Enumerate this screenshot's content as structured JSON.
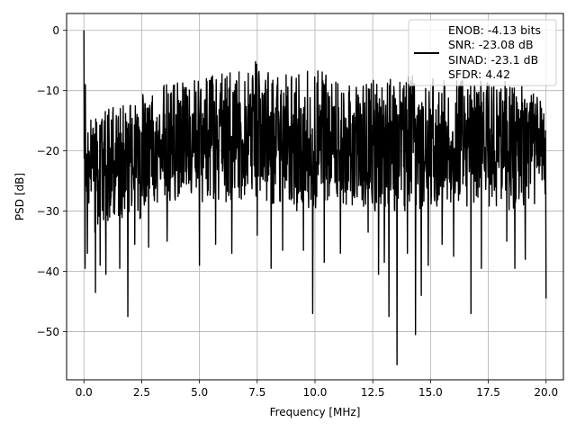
{
  "chart_data": {
    "type": "line",
    "xlabel": "Frequency [MHz]",
    "ylabel": "PSD [dB]",
    "xlim": [
      -0.75,
      20.75
    ],
    "ylim": [
      -58,
      2.8
    ],
    "xticks": [
      0.0,
      2.5,
      5.0,
      7.5,
      10.0,
      12.5,
      15.0,
      17.5,
      20.0
    ],
    "xtick_labels": [
      "0.0",
      "2.5",
      "5.0",
      "7.5",
      "10.0",
      "12.5",
      "15.0",
      "17.5",
      "20.0"
    ],
    "yticks": [
      0,
      -10,
      -20,
      -30,
      -40,
      -50
    ],
    "ytick_labels": [
      "0",
      "−10",
      "−20",
      "−30",
      "−40",
      "−50"
    ],
    "grid": true,
    "legend_position": "top-right",
    "legend_lines": [
      "ENOB: -4.13 bits",
      "SNR: -23.08 dB",
      "SINAD: -23.1 dB",
      "SFDR: 4.42"
    ],
    "series": [
      {
        "color": "#000000",
        "x": [
          0.0,
          0.05,
          0.1,
          0.2,
          0.4,
          0.6,
          0.8,
          1.0,
          1.2,
          1.4,
          1.6,
          1.8,
          1.9,
          2.0,
          2.2,
          2.4,
          2.6,
          2.8,
          3.0,
          3.2,
          3.4,
          3.6,
          3.8,
          4.0,
          4.2,
          4.4,
          4.6,
          4.8,
          5.0,
          5.2,
          5.4,
          5.6,
          5.8,
          6.0,
          6.2,
          6.4,
          6.6,
          6.8,
          7.0,
          7.2,
          7.4,
          7.6,
          7.8,
          8.0,
          8.2,
          8.4,
          8.6,
          8.8,
          9.0,
          9.2,
          9.4,
          9.6,
          9.8,
          10.0,
          10.2,
          10.4,
          10.6,
          10.8,
          11.0,
          11.2,
          11.4,
          11.6,
          11.8,
          12.0,
          12.2,
          12.4,
          12.6,
          12.8,
          13.0,
          13.2,
          13.4,
          13.6,
          13.8,
          14.0,
          14.2,
          14.4,
          14.6,
          14.8,
          15.0,
          15.2,
          15.4,
          15.6,
          15.8,
          16.0,
          16.2,
          16.4,
          16.6,
          16.8,
          17.0,
          17.2,
          17.4,
          17.6,
          17.8,
          18.0,
          18.2,
          18.4,
          18.6,
          18.8,
          19.0,
          19.2,
          19.4,
          19.6,
          19.8,
          20.0
        ],
        "y_upper": [
          0.0,
          -7.0,
          -11.5,
          -14.0,
          -14.5,
          -13.5,
          -13.0,
          -13.0,
          -12.5,
          -13.0,
          -12.0,
          -12.5,
          -12.0,
          -12.0,
          -12.0,
          -10.5,
          -10.5,
          -10.5,
          -10.0,
          -9.5,
          -9.0,
          -9.0,
          -8.5,
          -8.5,
          -9.0,
          -8.0,
          -7.5,
          -8.0,
          -8.0,
          -7.5,
          -8.0,
          -7.0,
          -7.5,
          -6.5,
          -6.5,
          -6.0,
          -7.0,
          -6.5,
          -6.0,
          -6.5,
          -5.0,
          -6.5,
          -6.0,
          -7.0,
          -6.5,
          -5.5,
          -6.5,
          -7.0,
          -7.5,
          -7.5,
          -6.5,
          -5.5,
          -6.5,
          -7.0,
          -6.5,
          -6.0,
          -7.5,
          -8.0,
          -6.5,
          -8.0,
          -8.5,
          -7.5,
          -8.5,
          -8.0,
          -8.5,
          -8.0,
          -8.0,
          -8.0,
          -8.0,
          -6.5,
          -7.5,
          -8.0,
          -8.0,
          -6.5,
          -7.0,
          -7.5,
          -8.0,
          -7.5,
          -8.0,
          -8.0,
          -8.5,
          -8.0,
          -8.5,
          -8.5,
          -7.5,
          -8.0,
          -8.0,
          -8.0,
          -8.0,
          -8.0,
          -8.0,
          -9.0,
          -9.0,
          -8.5,
          -8.0,
          -8.5,
          -8.0,
          -9.0,
          -8.5,
          -9.5,
          -9.0,
          -9.5,
          -10.0,
          -11.0
        ],
        "y_lower": [
          -27.5,
          -22.0,
          -33.0,
          -30.0,
          -34.0,
          -33.0,
          -33.0,
          -32.0,
          -31.0,
          -33.0,
          -32.0,
          -31.0,
          -31.0,
          -30.0,
          -32.0,
          -32.0,
          -31.0,
          -30.0,
          -30.0,
          -29.0,
          -31.0,
          -30.5,
          -29.0,
          -28.0,
          -30.0,
          -29.0,
          -29.0,
          -28.0,
          -29.0,
          -29.0,
          -28.0,
          -29.5,
          -30.0,
          -28.0,
          -29.0,
          -29.0,
          -28.0,
          -30.0,
          -29.0,
          -28.5,
          -30.0,
          -29.0,
          -28.5,
          -29.0,
          -29.5,
          -30.0,
          -29.0,
          -28.5,
          -29.0,
          -30.0,
          -29.0,
          -29.0,
          -30.0,
          -30.0,
          -29.0,
          -29.5,
          -30.0,
          -29.0,
          -30.0,
          -29.5,
          -29.0,
          -29.0,
          -30.0,
          -29.0,
          -29.5,
          -30.0,
          -30.5,
          -29.0,
          -30.0,
          -30.0,
          -31.0,
          -29.0,
          -30.0,
          -30.5,
          -29.0,
          -31.0,
          -30.0,
          -29.0,
          -30.0,
          -29.0,
          -30.5,
          -29.0,
          -29.5,
          -30.0,
          -29.0,
          -29.0,
          -30.5,
          -29.5,
          -30.0,
          -29.0,
          -29.5,
          -30.0,
          -29.0,
          -30.0,
          -29.0,
          -30.0,
          -30.5,
          -29.0,
          -30.0,
          -29.0,
          -30.5,
          -29.0,
          -29.0,
          -29.0
        ],
        "dips": [
          [
            0.05,
            -39.5
          ],
          [
            0.15,
            -37.0
          ],
          [
            0.5,
            -43.5
          ],
          [
            0.7,
            -39.0
          ],
          [
            0.95,
            -40.5
          ],
          [
            1.55,
            -39.5
          ],
          [
            1.9,
            -47.5
          ],
          [
            2.2,
            -35.5
          ],
          [
            2.8,
            -36.0
          ],
          [
            3.6,
            -35.0
          ],
          [
            5.0,
            -39.0
          ],
          [
            5.7,
            -35.5
          ],
          [
            6.4,
            -37.0
          ],
          [
            7.5,
            -34.0
          ],
          [
            8.1,
            -39.5
          ],
          [
            8.6,
            -36.5
          ],
          [
            9.5,
            -36.5
          ],
          [
            9.9,
            -47.0
          ],
          [
            10.4,
            -38.5
          ],
          [
            11.1,
            -37.0
          ],
          [
            12.3,
            -33.5
          ],
          [
            12.75,
            -40.5
          ],
          [
            13.0,
            -38.5
          ],
          [
            13.2,
            -47.5
          ],
          [
            13.55,
            -55.5
          ],
          [
            14.0,
            -37.0
          ],
          [
            14.35,
            -50.5
          ],
          [
            14.6,
            -44.0
          ],
          [
            14.9,
            -39.0
          ],
          [
            15.5,
            -35.5
          ],
          [
            16.0,
            -37.5
          ],
          [
            16.75,
            -47.0
          ],
          [
            17.2,
            -39.5
          ],
          [
            18.3,
            -35.0
          ],
          [
            18.65,
            -39.5
          ],
          [
            19.1,
            -38.0
          ],
          [
            20.0,
            -44.5
          ]
        ]
      }
    ]
  }
}
